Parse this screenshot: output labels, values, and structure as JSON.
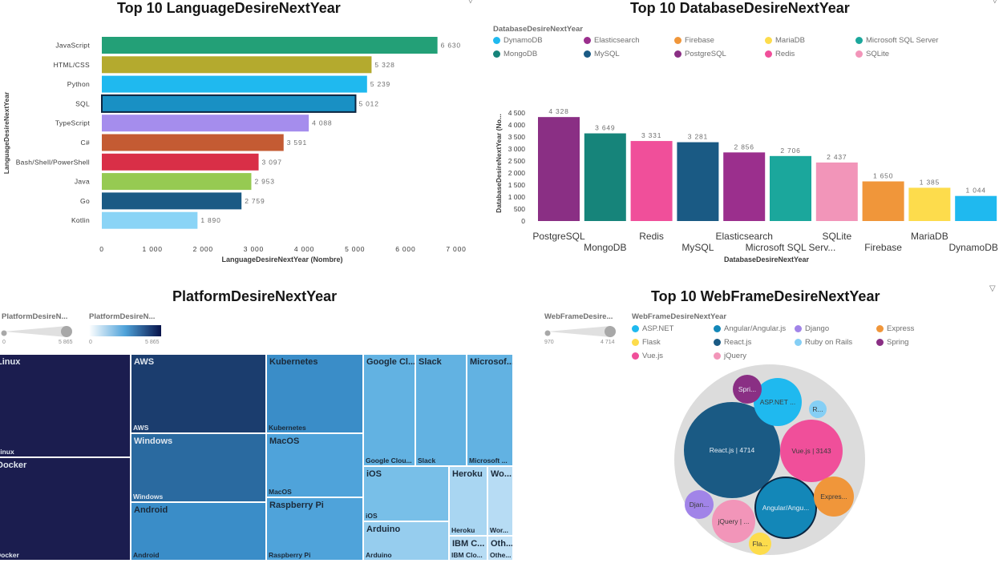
{
  "charts": {
    "languages": {
      "title": "Top 10 LanguageDesireNextYear",
      "xlabel": "LanguageDesireNextYear (Nombre)",
      "ylabel": "LanguageDesireNextYear",
      "xticks": [
        "0",
        "1 000",
        "2 000",
        "3 000",
        "4 000",
        "5 000",
        "6 000",
        "7 000"
      ]
    },
    "databases": {
      "title": "Top 10 DatabaseDesireNextYear",
      "legend_title": "DatabaseDesireNextYear",
      "xlabel": "DatabaseDesireNextYear",
      "ylabel": "DatabaseDesireNextYear (No...",
      "yticks": [
        "0",
        "500",
        "1 000",
        "1 500",
        "2 000",
        "2 500",
        "3 000",
        "3 500",
        "4 000",
        "4 500"
      ],
      "legend": [
        {
          "label": "DynamoDB",
          "color": "#1fb9ef"
        },
        {
          "label": "Elasticsearch",
          "color": "#9b2f8d"
        },
        {
          "label": "Firebase",
          "color": "#f0963a"
        },
        {
          "label": "MariaDB",
          "color": "#fddc4c"
        },
        {
          "label": "Microsoft SQL Server",
          "color": "#1ba79c"
        },
        {
          "label": "MongoDB",
          "color": "#16847a"
        },
        {
          "label": "MySQL",
          "color": "#1a5a84"
        },
        {
          "label": "PostgreSQL",
          "color": "#8a2f84"
        },
        {
          "label": "Redis",
          "color": "#f04f9a"
        },
        {
          "label": "SQLite",
          "color": "#f295b9"
        }
      ]
    },
    "platforms": {
      "title": "PlatformDesireNextYear",
      "size_label": "PlatformDesireN...",
      "color_label": "PlatformDesireN...",
      "range_min": "0",
      "range_max": "5 865"
    },
    "webframes": {
      "title": "Top 10 WebFrameDesireNextYear",
      "size_label": "WebFrameDesire...",
      "legend_title": "WebFrameDesireNextYear",
      "range_min": "970",
      "range_max": "4 714",
      "legend": [
        {
          "label": "ASP.NET",
          "color": "#1fb9ef"
        },
        {
          "label": "Angular/Angular.js",
          "color": "#1387b8"
        },
        {
          "label": "Django",
          "color": "#a184e8"
        },
        {
          "label": "Express",
          "color": "#f0963a"
        },
        {
          "label": "Flask",
          "color": "#fddc4c"
        },
        {
          "label": "React.js",
          "color": "#1a5a84"
        },
        {
          "label": "Ruby on Rails",
          "color": "#85cff5"
        },
        {
          "label": "Spring",
          "color": "#8a2f84"
        },
        {
          "label": "Vue.js",
          "color": "#f04f9a"
        },
        {
          "label": "jQuery",
          "color": "#f295b9"
        }
      ]
    }
  },
  "chart_data": [
    {
      "type": "bar",
      "orientation": "horizontal",
      "title": "Top 10 LanguageDesireNextYear",
      "xlabel": "LanguageDesireNextYear (Nombre)",
      "ylabel": "LanguageDesireNextYear",
      "xlim": [
        0,
        7000
      ],
      "categories": [
        "JavaScript",
        "HTML/CSS",
        "Python",
        "SQL",
        "TypeScript",
        "C#",
        "Bash/Shell/PowerShell",
        "Java",
        "Go",
        "Kotlin"
      ],
      "values": [
        6630,
        5328,
        5239,
        5012,
        4088,
        3591,
        3097,
        2953,
        2759,
        1890
      ],
      "value_labels": [
        "6 630",
        "5 328",
        "5 239",
        "5 012",
        "4 088",
        "3 591",
        "3 097",
        "2 953",
        "2 759",
        "1 890"
      ],
      "colors": [
        "#23a077",
        "#b4aa2e",
        "#1fb9ef",
        "#1990c4",
        "#a58ded",
        "#c45b33",
        "#d92f47",
        "#96ca52",
        "#1a5a84",
        "#8ad4f6"
      ]
    },
    {
      "type": "bar",
      "title": "Top 10 DatabaseDesireNextYear",
      "xlabel": "DatabaseDesireNextYear",
      "ylabel": "DatabaseDesireNextYear (No...",
      "ylim": [
        0,
        4500
      ],
      "categories": [
        "PostgreSQL",
        "MongoDB",
        "Redis",
        "MySQL",
        "Elasticsearch",
        "Microsoft SQL Serv...",
        "SQLite",
        "Firebase",
        "MariaDB",
        "DynamoDB"
      ],
      "values": [
        4328,
        3649,
        3331,
        3281,
        2856,
        2706,
        2437,
        1650,
        1385,
        1044
      ],
      "value_labels": [
        "4 328",
        "3 649",
        "3 331",
        "3 281",
        "2 856",
        "2 706",
        "2 437",
        "1 650",
        "1 385",
        "1 044"
      ],
      "colors": [
        "#8a2f84",
        "#16847a",
        "#f04f9a",
        "#1a5a84",
        "#9b2f8d",
        "#1ba79c",
        "#f295b9",
        "#f0963a",
        "#fddc4c",
        "#1fb9ef"
      ]
    },
    {
      "type": "treemap",
      "title": "PlatformDesireNextYear",
      "value_range": [
        0,
        5865
      ],
      "items": [
        {
          "label": "Linux",
          "sublabel": "Linux",
          "color": "#1b1d4f"
        },
        {
          "label": "Docker",
          "sublabel": "Docker",
          "color": "#1b1d4f"
        },
        {
          "label": "AWS",
          "sublabel": "AWS",
          "color": "#1b3d6e"
        },
        {
          "label": "Windows",
          "sublabel": "Windows",
          "color": "#2a6aa0"
        },
        {
          "label": "Android",
          "sublabel": "Android",
          "color": "#3a8dc8"
        },
        {
          "label": "Kubernetes",
          "sublabel": "Kubernetes",
          "color": "#3a8dc8"
        },
        {
          "label": "MacOS",
          "sublabel": "MacOS",
          "color": "#4fa3da"
        },
        {
          "label": "Raspberry Pi",
          "sublabel": "Raspberry Pi",
          "color": "#4fa3da"
        },
        {
          "label": "Google Cl...",
          "sublabel": "Google Clou...",
          "color": "#62b2e2"
        },
        {
          "label": "Slack",
          "sublabel": "Slack",
          "color": "#62b2e2"
        },
        {
          "label": "Microsof...",
          "sublabel": "Microsoft ...",
          "color": "#62b2e2"
        },
        {
          "label": "iOS",
          "sublabel": "iOS",
          "color": "#78bfe8"
        },
        {
          "label": "Arduino",
          "sublabel": "Arduino",
          "color": "#96cdee"
        },
        {
          "label": "Heroku",
          "sublabel": "Heroku",
          "color": "#a9d6f2"
        },
        {
          "label": "Wo...",
          "sublabel": "Wor...",
          "color": "#b7dcf4"
        },
        {
          "label": "IBM C...",
          "sublabel": "IBM Clo...",
          "color": "#b7dcf4"
        },
        {
          "label": "Oth...",
          "sublabel": "Othe...",
          "color": "#c1e1f6"
        }
      ]
    },
    {
      "type": "bubble",
      "title": "Top 10 WebFrameDesireNextYear",
      "value_range": [
        970,
        4714
      ],
      "items": [
        {
          "label": "React.js | 4714",
          "name": "React.js",
          "value": 4714,
          "color": "#1a5a84"
        },
        {
          "label": "Vue.js | 3143",
          "name": "Vue.js",
          "value": 3143,
          "color": "#f04f9a"
        },
        {
          "label": "Angular/Angu...",
          "name": "Angular/Angular.js",
          "color": "#1387b8"
        },
        {
          "label": "ASP.NET ...",
          "name": "ASP.NET",
          "color": "#1fb9ef"
        },
        {
          "label": "jQuery | ...",
          "name": "jQuery",
          "color": "#f295b9"
        },
        {
          "label": "Expres...",
          "name": "Express",
          "color": "#f0963a"
        },
        {
          "label": "Spri...",
          "name": "Spring",
          "color": "#8a2f84"
        },
        {
          "label": "Djan...",
          "name": "Django",
          "color": "#a184e8"
        },
        {
          "label": "Fla...",
          "name": "Flask",
          "color": "#fddc4c"
        },
        {
          "label": "R...",
          "name": "Ruby on Rails",
          "color": "#85cff5"
        }
      ]
    }
  ]
}
